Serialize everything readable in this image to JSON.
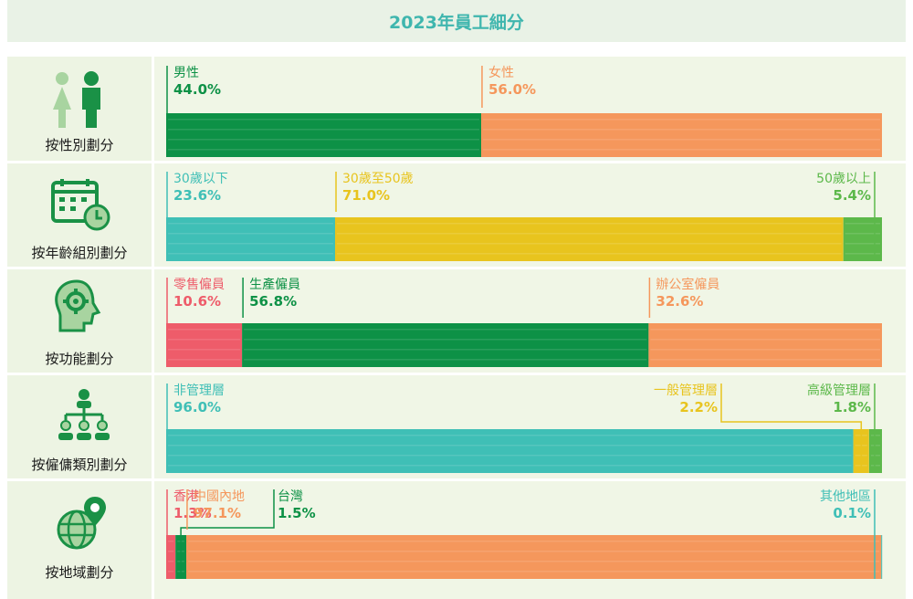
{
  "title": "2023年員工細分",
  "colors": {
    "green": "#0d9146",
    "orange": "#f5975c",
    "teal": "#3fbfb6",
    "yellow": "#e8c41e",
    "lightgreen": "#5cb84a",
    "red": "#ee5c6a",
    "icon": "#1a9146",
    "iconLight": "#a8d4a0"
  },
  "chart_data": {
    "type": "bar",
    "layout": "stacked-100-horizontal",
    "rows": [
      {
        "label": "按性別劃分",
        "icon": "male-female-icon",
        "segments": [
          {
            "name": "男性",
            "value": 44.0,
            "color": "green"
          },
          {
            "name": "女性",
            "value": 56.0,
            "color": "orange"
          }
        ]
      },
      {
        "label": "按年齡組別劃分",
        "icon": "calendar-clock-icon",
        "segments": [
          {
            "name": "30歲以下",
            "value": 23.6,
            "color": "teal"
          },
          {
            "name": "30歲至50歲",
            "value": 71.0,
            "color": "yellow"
          },
          {
            "name": "50歲以上",
            "value": 5.4,
            "color": "lightgreen"
          }
        ]
      },
      {
        "label": "按功能劃分",
        "icon": "head-gear-icon",
        "segments": [
          {
            "name": "零售僱員",
            "value": 10.6,
            "color": "red"
          },
          {
            "name": "生產僱員",
            "value": 56.8,
            "color": "green"
          },
          {
            "name": "辦公室僱員",
            "value": 32.6,
            "color": "orange"
          }
        ]
      },
      {
        "label": "按僱傭類別劃分",
        "icon": "org-chart-icon",
        "segments": [
          {
            "name": "非管理層",
            "value": 96.0,
            "color": "teal"
          },
          {
            "name": "一般管理層",
            "value": 2.2,
            "color": "yellow"
          },
          {
            "name": "高級管理層",
            "value": 1.8,
            "color": "lightgreen"
          }
        ]
      },
      {
        "label": "按地域劃分",
        "icon": "globe-pin-icon",
        "segments": [
          {
            "name": "香港",
            "value": 1.3,
            "color": "red"
          },
          {
            "name": "台灣",
            "value": 1.5,
            "color": "green"
          },
          {
            "name": "中國內地",
            "value": 97.1,
            "color": "orange"
          },
          {
            "name": "其他地區",
            "value": 0.1,
            "color": "teal"
          }
        ]
      }
    ]
  }
}
